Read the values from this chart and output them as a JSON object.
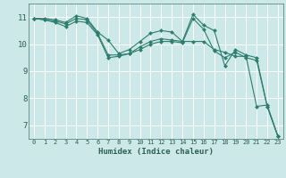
{
  "title": "",
  "xlabel": "Humidex (Indice chaleur)",
  "ylabel": "",
  "background_color": "#cce8e8",
  "grid_color": "#ffffff",
  "line_color": "#2e7d6e",
  "marker_color": "#2e7d6e",
  "xlim": [
    -0.5,
    23.5
  ],
  "ylim": [
    6.5,
    11.5
  ],
  "yticks": [
    7,
    8,
    9,
    10,
    11
  ],
  "xticks": [
    0,
    1,
    2,
    3,
    4,
    5,
    6,
    7,
    8,
    9,
    10,
    11,
    12,
    13,
    14,
    15,
    16,
    17,
    18,
    19,
    20,
    21,
    22,
    23
  ],
  "series": [
    [
      10.95,
      10.95,
      10.9,
      10.8,
      11.05,
      10.95,
      10.45,
      10.15,
      9.65,
      9.8,
      10.1,
      10.4,
      10.5,
      10.45,
      10.1,
      10.1,
      10.1,
      9.8,
      9.7,
      9.55,
      9.55,
      7.7,
      7.75,
      6.6
    ],
    [
      10.95,
      10.9,
      10.85,
      10.75,
      10.95,
      10.9,
      10.4,
      9.6,
      9.6,
      9.65,
      9.9,
      10.1,
      10.2,
      10.15,
      10.1,
      11.1,
      10.7,
      10.5,
      9.2,
      9.8,
      9.6,
      9.5,
      7.7,
      6.6
    ],
    [
      10.95,
      10.9,
      10.8,
      10.65,
      10.85,
      10.8,
      10.35,
      9.5,
      9.55,
      9.65,
      9.8,
      10.0,
      10.1,
      10.1,
      10.05,
      10.95,
      10.55,
      9.75,
      9.5,
      9.7,
      9.5,
      9.4,
      7.7,
      6.6
    ]
  ]
}
